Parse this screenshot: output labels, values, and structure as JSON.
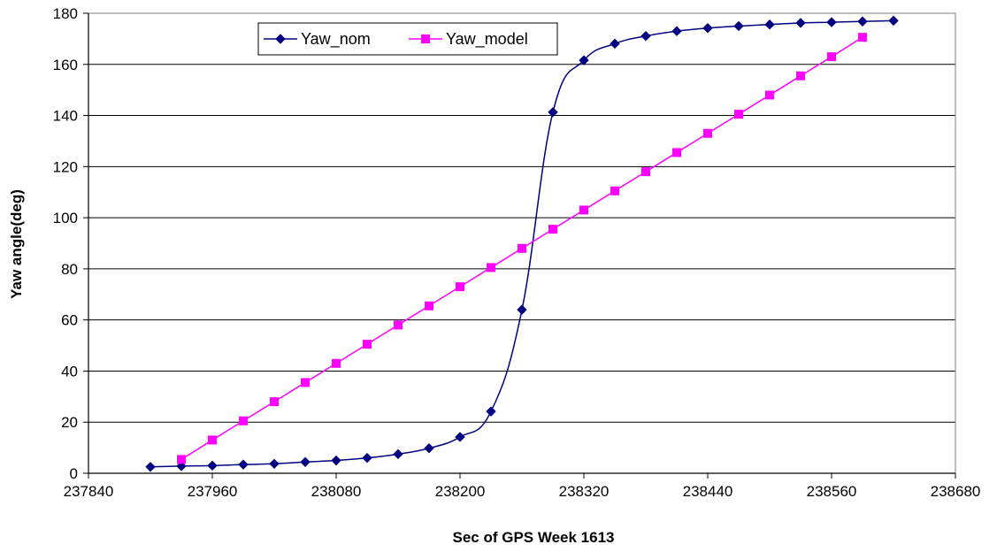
{
  "chart_data": {
    "type": "line",
    "title": "",
    "xlabel": "Sec of GPS Week 1613",
    "ylabel": "Yaw angle(deg)",
    "xlim": [
      237840,
      238680
    ],
    "ylim": [
      0,
      180
    ],
    "xticks": [
      237840,
      237960,
      238080,
      238200,
      238320,
      238440,
      238560,
      238680
    ],
    "yticks": [
      0,
      20,
      40,
      60,
      80,
      100,
      120,
      140,
      160,
      180
    ],
    "grid": "horizontal",
    "legend": "top-center",
    "series": [
      {
        "name": "Yaw_nom",
        "color": "#000080",
        "marker": "diamond",
        "smooth": true,
        "x": [
          237900,
          237930,
          237960,
          237990,
          238020,
          238050,
          238080,
          238110,
          238140,
          238170,
          238200,
          238230,
          238260,
          238290,
          238320,
          238350,
          238380,
          238410,
          238440,
          238470,
          238500,
          238530,
          238560,
          238590,
          238620
        ],
        "y": [
          2.5,
          2.8,
          3.0,
          3.4,
          3.7,
          4.4,
          5.0,
          6.0,
          7.5,
          9.8,
          14.2,
          24.2,
          64.0,
          141.3,
          161.6,
          168.1,
          171.1,
          173.0,
          174.2,
          175.0,
          175.6,
          176.2,
          176.5,
          176.8,
          177.1
        ]
      },
      {
        "name": "Yaw_model",
        "color": "#FF00FF",
        "marker": "square",
        "smooth": false,
        "x": [
          237930,
          237960,
          237990,
          238020,
          238050,
          238080,
          238110,
          238140,
          238170,
          238200,
          238230,
          238260,
          238290,
          238320,
          238350,
          238380,
          238410,
          238440,
          238470,
          238500,
          238530,
          238560,
          238590
        ],
        "y": [
          5.4,
          13.0,
          20.5,
          28.0,
          35.5,
          43.0,
          50.5,
          58.0,
          65.5,
          73.0,
          80.5,
          88.0,
          95.5,
          103.0,
          110.5,
          118.0,
          125.5,
          133.0,
          140.5,
          148.0,
          155.5,
          163.0,
          170.6
        ]
      }
    ]
  }
}
